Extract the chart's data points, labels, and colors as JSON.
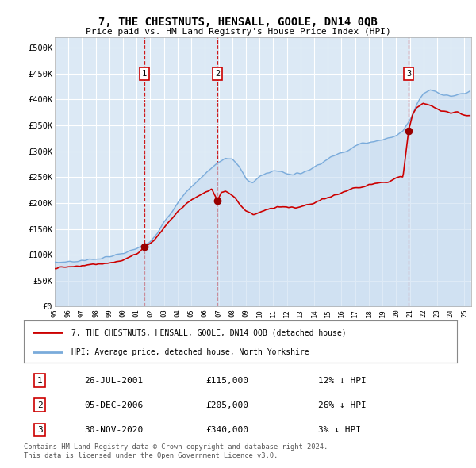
{
  "title": "7, THE CHESTNUTS, HENSALL, GOOLE, DN14 0QB",
  "subtitle": "Price paid vs. HM Land Registry's House Price Index (HPI)",
  "background_color": "#ffffff",
  "plot_background": "#dce9f5",
  "grid_color": "#ffffff",
  "ylim": [
    0,
    520000
  ],
  "yticks": [
    0,
    50000,
    100000,
    150000,
    200000,
    250000,
    300000,
    350000,
    400000,
    450000,
    500000
  ],
  "ytick_labels": [
    "£0",
    "£50K",
    "£100K",
    "£150K",
    "£200K",
    "£250K",
    "£300K",
    "£350K",
    "£400K",
    "£450K",
    "£500K"
  ],
  "xlim_start": 1995.0,
  "xlim_end": 2025.5,
  "xticks": [
    1995,
    1996,
    1997,
    1998,
    1999,
    2000,
    2001,
    2002,
    2003,
    2004,
    2005,
    2006,
    2007,
    2008,
    2009,
    2010,
    2011,
    2012,
    2013,
    2014,
    2015,
    2016,
    2017,
    2018,
    2019,
    2020,
    2021,
    2022,
    2023,
    2024,
    2025
  ],
  "sale_dates": [
    2001.57,
    2006.92,
    2020.92
  ],
  "sale_prices": [
    115000,
    205000,
    340000
  ],
  "sale_labels": [
    "1",
    "2",
    "3"
  ],
  "red_line_color": "#cc0000",
  "blue_line_color": "#7aabdb",
  "blue_fill_color": "#c8dcf0",
  "dashed_line_color": "#cc0000",
  "legend_entry1": "7, THE CHESTNUTS, HENSALL, GOOLE, DN14 0QB (detached house)",
  "legend_entry2": "HPI: Average price, detached house, North Yorkshire",
  "table_rows": [
    [
      "1",
      "26-JUL-2001",
      "£115,000",
      "12% ↓ HPI"
    ],
    [
      "2",
      "05-DEC-2006",
      "£205,000",
      "26% ↓ HPI"
    ],
    [
      "3",
      "30-NOV-2020",
      "£340,000",
      "3% ↓ HPI"
    ]
  ],
  "footnote1": "Contains HM Land Registry data © Crown copyright and database right 2024.",
  "footnote2": "This data is licensed under the Open Government Licence v3.0."
}
